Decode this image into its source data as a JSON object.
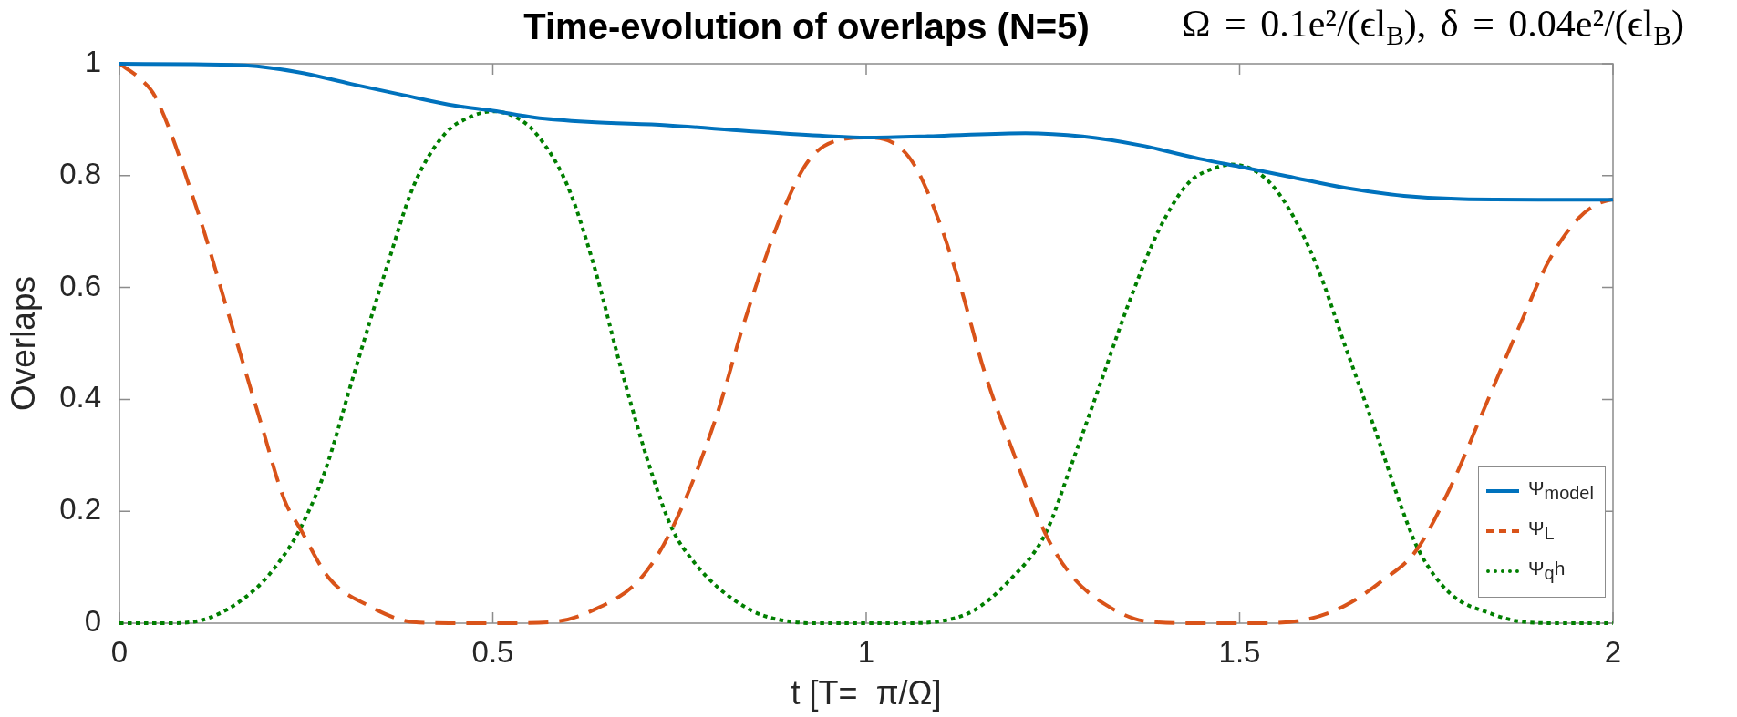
{
  "chart_data": {
    "type": "line",
    "title": "Time-evolution of overlaps (N=5)",
    "xlabel": "t [T=  π/Ω]",
    "ylabel": "Overlaps",
    "annotations": [
      "Ω = 0.1e²/(ϵl$_{B}$), δ = 0.04e²/(ϵl$_{B}$)"
    ],
    "xlim": [
      0,
      2
    ],
    "xticks": [
      0,
      0.5,
      1,
      1.5,
      2
    ],
    "ylim": [
      0,
      1
    ],
    "yticks": [
      0,
      0.2,
      0.4,
      0.6,
      0.8,
      1
    ],
    "legend": "bottom right",
    "series": [
      {
        "name": "Ψ$_{model}$",
        "color": "#0072bd",
        "line_style": "solid",
        "x": [
          0,
          0.1,
          0.168,
          0.239,
          0.31,
          0.38,
          0.45,
          0.5,
          0.556,
          0.627,
          0.733,
          0.839,
          0.945,
          1,
          1.096,
          1.213,
          1.29,
          1.368,
          1.447,
          1.5,
          1.564,
          1.642,
          1.72,
          1.798,
          1.9,
          2
        ],
        "values": [
          1,
          0.999,
          0.997,
          0.985,
          0.964,
          0.944,
          0.925,
          0.916,
          0.904,
          0.896,
          0.89,
          0.88,
          0.871,
          0.868,
          0.871,
          0.876,
          0.87,
          0.854,
          0.83,
          0.816,
          0.799,
          0.778,
          0.764,
          0.758,
          0.757,
          0.757
        ]
      },
      {
        "name": "Ψ$_{L}$",
        "color": "#d95319",
        "line_style": "dashed",
        "x": [
          0,
          0.027,
          0.048,
          0.105,
          0.147,
          0.189,
          0.221,
          0.242,
          0.281,
          0.331,
          0.394,
          0.45,
          0.5,
          0.578,
          0.634,
          0.698,
          0.74,
          0.797,
          0.839,
          0.888,
          0.924,
          0.973,
          1,
          1.034,
          1.065,
          1.096,
          1.127,
          1.158,
          1.197,
          1.24,
          1.275,
          1.322,
          1.377,
          1.45,
          1.52,
          1.587,
          1.642,
          1.689,
          1.736,
          1.782,
          1.829,
          1.876,
          1.915,
          1.954,
          1.98,
          2
        ],
        "values": [
          1,
          0.974,
          0.941,
          0.735,
          0.548,
          0.36,
          0.22,
          0.169,
          0.08,
          0.033,
          0.002,
          0,
          0,
          0.002,
          0.023,
          0.08,
          0.169,
          0.36,
          0.548,
          0.735,
          0.829,
          0.866,
          0.868,
          0.86,
          0.818,
          0.724,
          0.598,
          0.451,
          0.305,
          0.16,
          0.085,
          0.032,
          0.003,
          0,
          0,
          0.006,
          0.032,
          0.074,
          0.129,
          0.242,
          0.388,
          0.535,
          0.65,
          0.724,
          0.75,
          0.758
        ]
      },
      {
        "name": "Ψ$_{q}$h",
        "color": "#007f00",
        "line_style": "dotted",
        "x": [
          0,
          0.062,
          0.119,
          0.182,
          0.218,
          0.242,
          0.274,
          0.316,
          0.359,
          0.394,
          0.436,
          0.47,
          0.5,
          0.53,
          0.558,
          0.6,
          0.635,
          0.672,
          0.713,
          0.74,
          0.77,
          0.804,
          0.846,
          0.874,
          0.93,
          1,
          1.05,
          1.096,
          1.143,
          1.19,
          1.24,
          1.275,
          1.314,
          1.353,
          1.392,
          1.431,
          1.47,
          1.49,
          1.533,
          1.564,
          1.603,
          1.642,
          1.681,
          1.72,
          1.74,
          1.782,
          1.837,
          1.876,
          1.93,
          2
        ],
        "values": [
          0,
          0,
          0.009,
          0.061,
          0.117,
          0.169,
          0.267,
          0.454,
          0.641,
          0.782,
          0.875,
          0.905,
          0.915,
          0.905,
          0.875,
          0.782,
          0.641,
          0.454,
          0.267,
          0.169,
          0.108,
          0.061,
          0.023,
          0.009,
          0,
          0,
          0,
          0.003,
          0.022,
          0.074,
          0.16,
          0.284,
          0.43,
          0.577,
          0.703,
          0.786,
          0.815,
          0.82,
          0.797,
          0.745,
          0.64,
          0.493,
          0.347,
          0.195,
          0.13,
          0.053,
          0.017,
          0.003,
          0,
          0
        ]
      }
    ]
  }
}
